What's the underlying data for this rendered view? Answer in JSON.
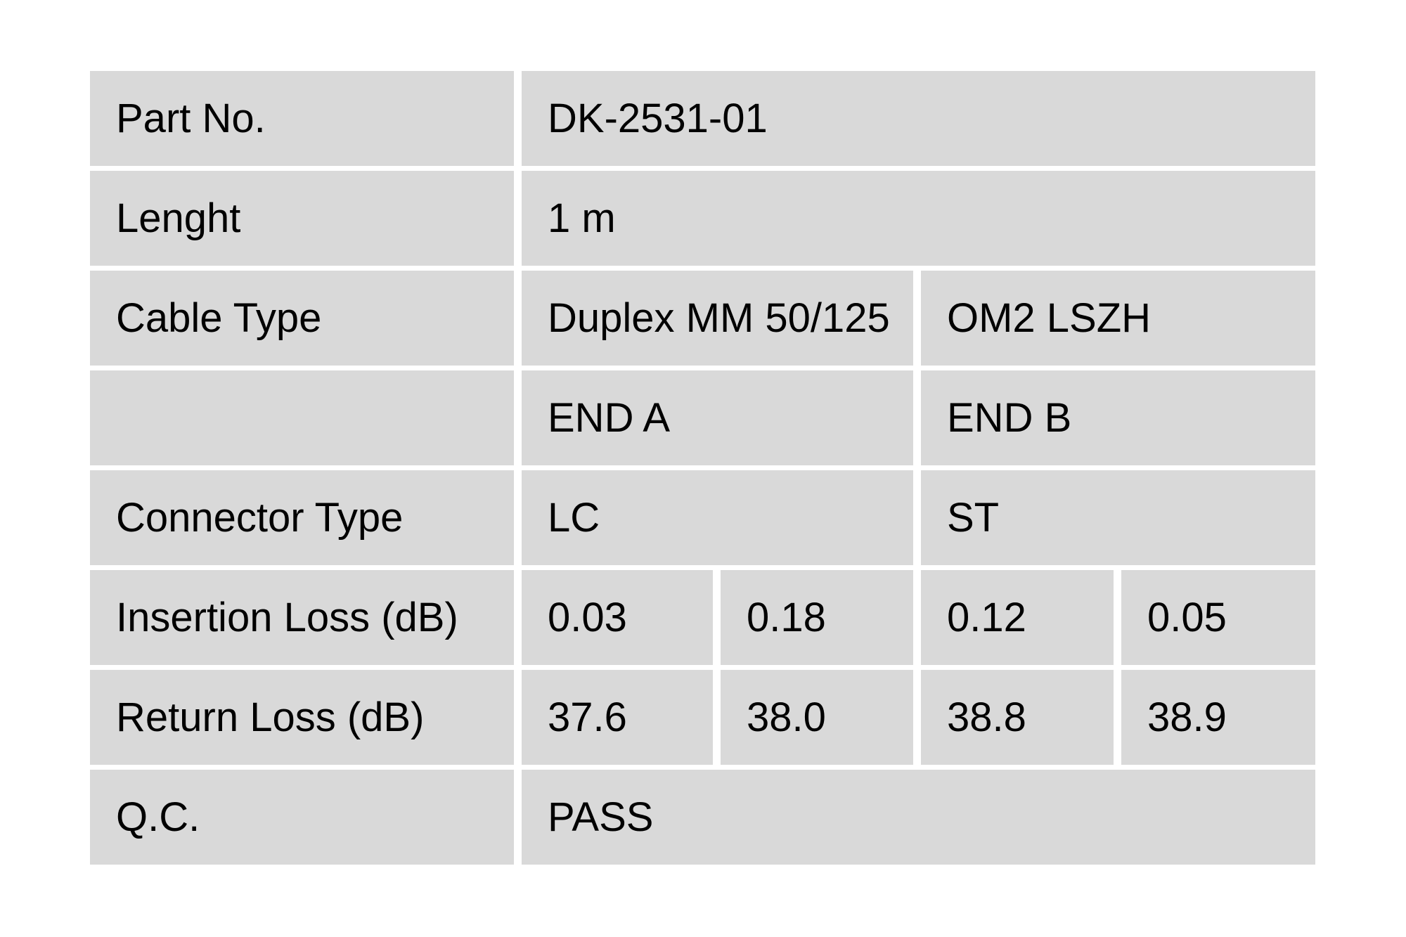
{
  "page": {
    "background_color": "#ffffff",
    "cell_background_color": "#d9d9d9",
    "text_color": "#000000"
  },
  "table": {
    "rows": {
      "part_no": {
        "label": "Part No.",
        "value": "DK-2531-01"
      },
      "length": {
        "label": "Lenght",
        "value": "1 m"
      },
      "cable_type": {
        "label": "Cable Type",
        "value_a": "Duplex MM 50/125",
        "value_b": "OM2 LSZH"
      },
      "ends": {
        "label": "",
        "end_a": "END A",
        "end_b": "END B"
      },
      "connector_type": {
        "label": "Connector Type",
        "end_a": "LC",
        "end_b": "ST"
      },
      "insertion_loss": {
        "label": "Insertion Loss (dB)",
        "values": [
          "0.03",
          "0.18",
          "0.12",
          "0.05"
        ]
      },
      "return_loss": {
        "label": "Return Loss (dB)",
        "values": [
          "37.6",
          "38.0",
          "38.8",
          "38.9"
        ]
      },
      "qc": {
        "label": "Q.C.",
        "value": "PASS"
      }
    }
  }
}
